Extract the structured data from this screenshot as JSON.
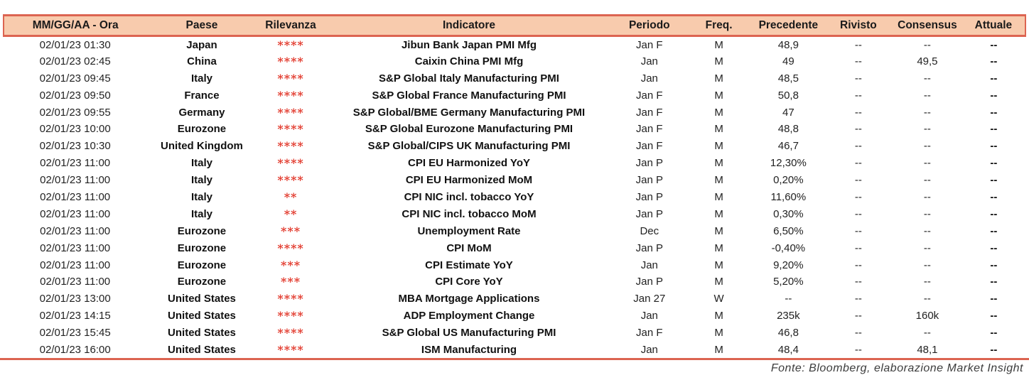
{
  "colors": {
    "header_bg": "#F8CBAD",
    "accent_line": "#DC6451",
    "star_red": "#E2392C",
    "text": "#1A1A1A",
    "footer_text": "#3C3C3C"
  },
  "table": {
    "columns": [
      {
        "key": "datetime",
        "label": "MM/GG/AA - Ora"
      },
      {
        "key": "country",
        "label": "Paese"
      },
      {
        "key": "relevance",
        "label": "Rilevanza"
      },
      {
        "key": "indicator",
        "label": "Indicatore"
      },
      {
        "key": "period",
        "label": "Periodo"
      },
      {
        "key": "freq",
        "label": "Freq."
      },
      {
        "key": "previous",
        "label": "Precedente"
      },
      {
        "key": "revised",
        "label": "Rivisto"
      },
      {
        "key": "consensus",
        "label": "Consensus"
      },
      {
        "key": "actual",
        "label": "Attuale"
      }
    ],
    "rows": [
      {
        "datetime": "02/01/23 01:30",
        "country": "Japan",
        "relevance": "****",
        "indicator": "Jibun Bank Japan PMI Mfg",
        "period": "Jan F",
        "freq": "M",
        "previous": "48,9",
        "revised": "--",
        "consensus": "--",
        "actual": "--"
      },
      {
        "datetime": "02/01/23 02:45",
        "country": "China",
        "relevance": "****",
        "indicator": "Caixin China PMI Mfg",
        "period": "Jan",
        "freq": "M",
        "previous": "49",
        "revised": "--",
        "consensus": "49,5",
        "actual": "--"
      },
      {
        "datetime": "02/01/23 09:45",
        "country": "Italy",
        "relevance": "****",
        "indicator": "S&P Global Italy Manufacturing PMI",
        "period": "Jan",
        "freq": "M",
        "previous": "48,5",
        "revised": "--",
        "consensus": "--",
        "actual": "--"
      },
      {
        "datetime": "02/01/23 09:50",
        "country": "France",
        "relevance": "****",
        "indicator": "S&P Global France Manufacturing PMI",
        "period": "Jan F",
        "freq": "M",
        "previous": "50,8",
        "revised": "--",
        "consensus": "--",
        "actual": "--"
      },
      {
        "datetime": "02/01/23 09:55",
        "country": "Germany",
        "relevance": "****",
        "indicator": "S&P Global/BME Germany Manufacturing PMI",
        "period": "Jan F",
        "freq": "M",
        "previous": "47",
        "revised": "--",
        "consensus": "--",
        "actual": "--"
      },
      {
        "datetime": "02/01/23 10:00",
        "country": "Eurozone",
        "relevance": "****",
        "indicator": "S&P Global Eurozone Manufacturing PMI",
        "period": "Jan F",
        "freq": "M",
        "previous": "48,8",
        "revised": "--",
        "consensus": "--",
        "actual": "--"
      },
      {
        "datetime": "02/01/23 10:30",
        "country": "United Kingdom",
        "relevance": "****",
        "indicator": "S&P Global/CIPS UK Manufacturing PMI",
        "period": "Jan F",
        "freq": "M",
        "previous": "46,7",
        "revised": "--",
        "consensus": "--",
        "actual": "--"
      },
      {
        "datetime": "02/01/23 11:00",
        "country": "Italy",
        "relevance": "****",
        "indicator": "CPI EU Harmonized YoY",
        "period": "Jan P",
        "freq": "M",
        "previous": "12,30%",
        "revised": "--",
        "consensus": "--",
        "actual": "--"
      },
      {
        "datetime": "02/01/23 11:00",
        "country": "Italy",
        "relevance": "****",
        "indicator": "CPI EU Harmonized MoM",
        "period": "Jan P",
        "freq": "M",
        "previous": "0,20%",
        "revised": "--",
        "consensus": "--",
        "actual": "--"
      },
      {
        "datetime": "02/01/23 11:00",
        "country": "Italy",
        "relevance": "**",
        "indicator": "CPI NIC incl. tobacco YoY",
        "period": "Jan P",
        "freq": "M",
        "previous": "11,60%",
        "revised": "--",
        "consensus": "--",
        "actual": "--"
      },
      {
        "datetime": "02/01/23 11:00",
        "country": "Italy",
        "relevance": "**",
        "indicator": "CPI NIC incl. tobacco MoM",
        "period": "Jan P",
        "freq": "M",
        "previous": "0,30%",
        "revised": "--",
        "consensus": "--",
        "actual": "--"
      },
      {
        "datetime": "02/01/23 11:00",
        "country": "Eurozone",
        "relevance": "***",
        "indicator": "Unemployment Rate",
        "period": "Dec",
        "freq": "M",
        "previous": "6,50%",
        "revised": "--",
        "consensus": "--",
        "actual": "--"
      },
      {
        "datetime": "02/01/23 11:00",
        "country": "Eurozone",
        "relevance": "****",
        "indicator": "CPI MoM",
        "period": "Jan P",
        "freq": "M",
        "previous": "-0,40%",
        "revised": "--",
        "consensus": "--",
        "actual": "--"
      },
      {
        "datetime": "02/01/23 11:00",
        "country": "Eurozone",
        "relevance": "***",
        "indicator": "CPI Estimate YoY",
        "period": "Jan",
        "freq": "M",
        "previous": "9,20%",
        "revised": "--",
        "consensus": "--",
        "actual": "--"
      },
      {
        "datetime": "02/01/23 11:00",
        "country": "Eurozone",
        "relevance": "***",
        "indicator": "CPI Core YoY",
        "period": "Jan P",
        "freq": "M",
        "previous": "5,20%",
        "revised": "--",
        "consensus": "--",
        "actual": "--"
      },
      {
        "datetime": "02/01/23 13:00",
        "country": "United States",
        "relevance": "****",
        "indicator": "MBA Mortgage Applications",
        "period": "Jan 27",
        "freq": "W",
        "previous": "--",
        "revised": "--",
        "consensus": "--",
        "actual": "--"
      },
      {
        "datetime": "02/01/23 14:15",
        "country": "United States",
        "relevance": "****",
        "indicator": "ADP Employment Change",
        "period": "Jan",
        "freq": "M",
        "previous": "235k",
        "revised": "--",
        "consensus": "160k",
        "actual": "--"
      },
      {
        "datetime": "02/01/23 15:45",
        "country": "United States",
        "relevance": "****",
        "indicator": "S&P Global US Manufacturing PMI",
        "period": "Jan F",
        "freq": "M",
        "previous": "46,8",
        "revised": "--",
        "consensus": "--",
        "actual": "--"
      },
      {
        "datetime": "02/01/23 16:00",
        "country": "United States",
        "relevance": "****",
        "indicator": "ISM Manufacturing",
        "period": "Jan",
        "freq": "M",
        "previous": "48,4",
        "revised": "--",
        "consensus": "48,1",
        "actual": "--"
      }
    ]
  },
  "footer": {
    "source_label": "Fonte: Bloomberg, elaborazione Market Insight"
  }
}
